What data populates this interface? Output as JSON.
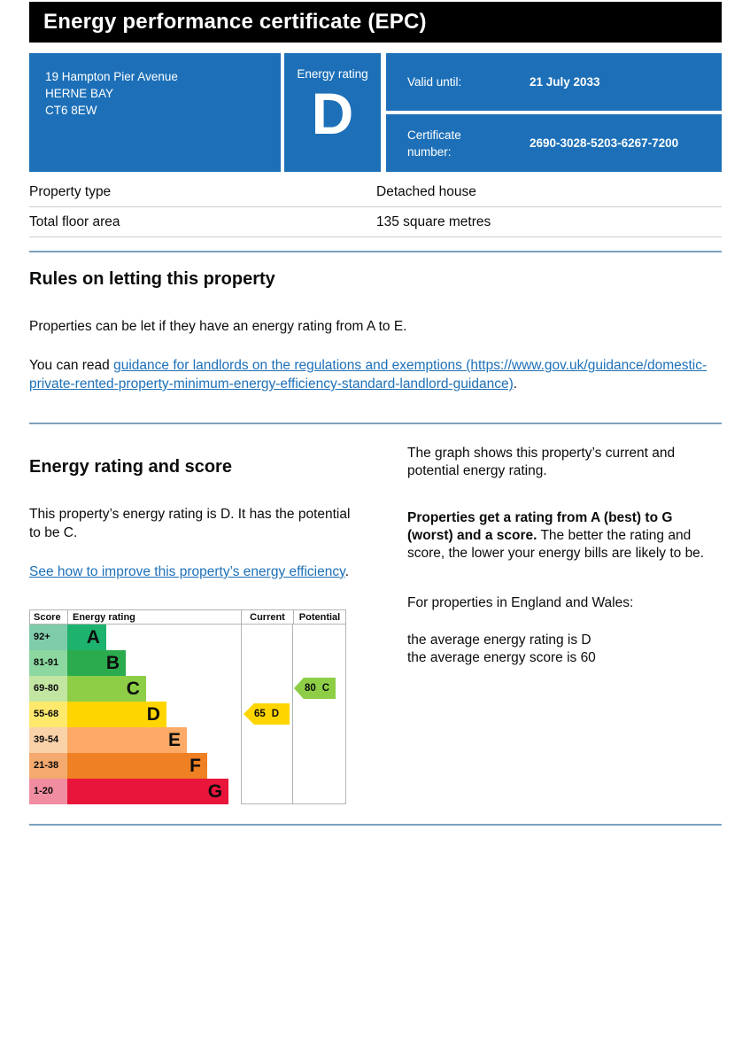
{
  "page": {
    "title": "Energy performance certificate (EPC)"
  },
  "summary": {
    "address_lines": [
      "19 Hampton Pier Avenue",
      "HERNE BAY",
      "CT6 8EW"
    ],
    "energy_rating_label": "Energy rating",
    "energy_rating": "D",
    "valid_until_label": "Valid until:",
    "valid_until_value": "21 July 2033",
    "certificate_number_label": "Certificate number:",
    "certificate_number_value": "2690-3028-5203-6267-7200"
  },
  "property_table": {
    "rows": [
      {
        "label": "Property type",
        "value": "Detached house"
      },
      {
        "label": "Total floor area",
        "value": "135 square metres"
      }
    ]
  },
  "rules_section": {
    "heading": "Rules on letting this property",
    "para1": "Properties can be let if they have an energy rating from A to E.",
    "para2_prefix": "You can read ",
    "para2_link": "guidance for landlords on the regulations and exemptions (https://www.gov.uk/guidance/domestic-private-rented-property-minimum-energy-efficiency-standard-landlord-guidance)",
    "para2_suffix": "."
  },
  "score_section": {
    "heading": "Energy rating and score",
    "para1": "This property’s energy rating is D. It has the potential to be C.",
    "link": "See how to improve this property’s energy efficiency",
    "link_suffix": ".",
    "right_para1": "The graph shows this property’s current and potential energy rating.",
    "right_para2_bold": "Properties get a rating from A (best) to G (worst) and a score.",
    "right_para2_rest": " The better the rating and score, the lower your energy bills are likely to be.",
    "right_para3": "For properties in England and Wales:",
    "right_para4_line1": "the average energy rating is D",
    "right_para4_line2": "the average energy score is 60"
  },
  "chart_data": {
    "type": "bar",
    "title": "Energy rating and score chart",
    "columns": [
      "Score",
      "Energy rating",
      "Current",
      "Potential"
    ],
    "bands": [
      {
        "score": "92+",
        "rating": "A",
        "color": "#1db36e",
        "score_bg": "#7fccab",
        "width_pct": 22.4
      },
      {
        "score": "81-91",
        "rating": "B",
        "color": "#2bab4e",
        "score_bg": "#8cd8a0",
        "width_pct": 33.7
      },
      {
        "score": "69-80",
        "rating": "C",
        "color": "#8dce46",
        "score_bg": "#c3e5a2",
        "width_pct": 45.4
      },
      {
        "score": "55-68",
        "rating": "D",
        "color": "#ffd500",
        "score_bg": "#ffe96d",
        "width_pct": 57.1
      },
      {
        "score": "39-54",
        "rating": "E",
        "color": "#fcaa65",
        "score_bg": "#fad2a8",
        "width_pct": 68.9
      },
      {
        "score": "21-38",
        "rating": "F",
        "color": "#ef8023",
        "score_bg": "#f4aa6e",
        "width_pct": 80.6
      },
      {
        "score": "1-20",
        "rating": "G",
        "color": "#e9153b",
        "score_bg": "#f18da0",
        "width_pct": 92.9
      }
    ],
    "current": {
      "score": "65",
      "band": "D",
      "color": "#ffd500"
    },
    "potential": {
      "score": "80",
      "band": "C",
      "color": "#8dce46"
    },
    "layout": {
      "legend": false,
      "grid": false,
      "current_row_band": "D",
      "potential_row_band": "C"
    }
  },
  "colors": {
    "brand_blue": "#1d70b8",
    "link_blue": "#1d70b8",
    "rule_blue": "#7da1bd",
    "masthead_black": "#000000",
    "chart_border_grey": "#b1b4b6"
  }
}
